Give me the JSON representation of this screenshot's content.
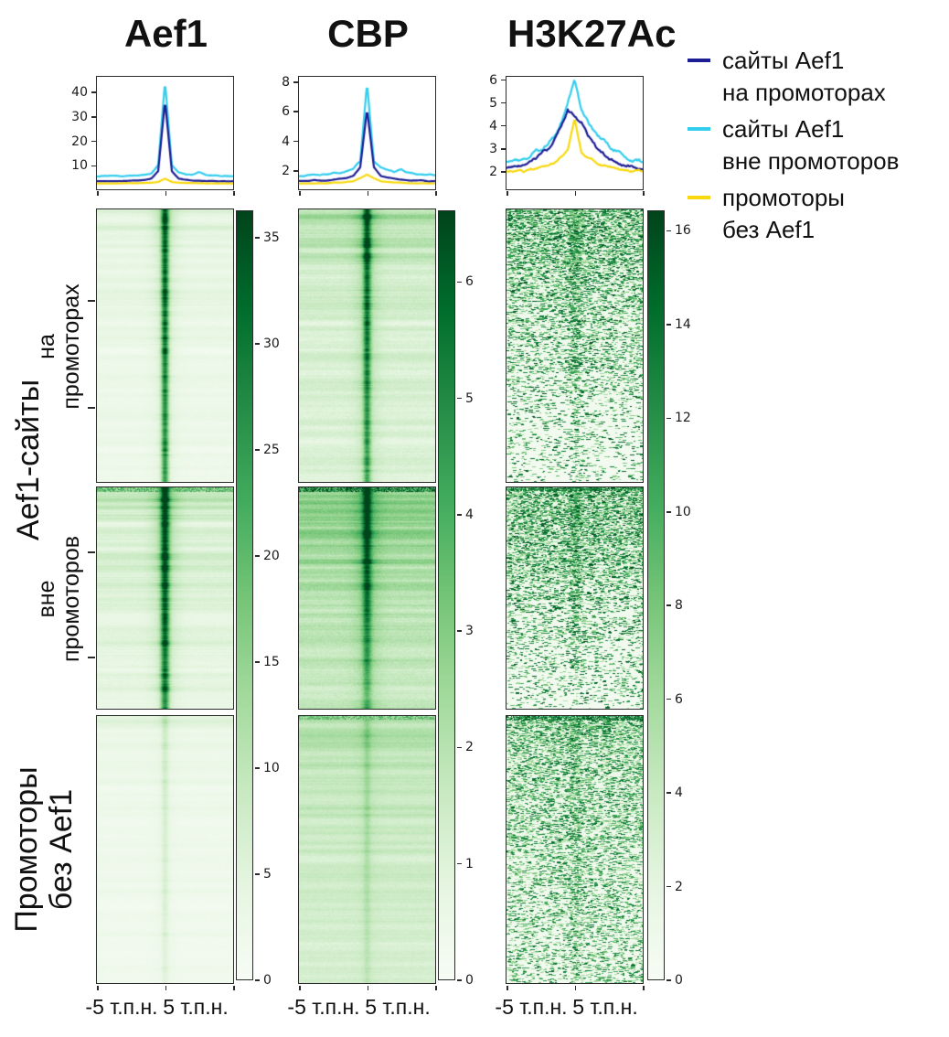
{
  "figure": {
    "xaxis_left": "-5 т.п.н.",
    "xaxis_right": "5 т.п.н.",
    "row_labels": {
      "super": "Aef1-сайты",
      "group1": [
        "на",
        "промоторах"
      ],
      "group2": [
        "вне",
        "промоторов"
      ],
      "group3": [
        "Промоторы",
        "без Aef1"
      ]
    }
  },
  "legend": {
    "items": [
      {
        "label": "сайты Aef1 на промоторах",
        "lines": [
          "сайты Aef1",
          "на промоторах"
        ],
        "color": "#1c1c94"
      },
      {
        "label": "сайты Aef1 вне промоторов",
        "lines": [
          "сайты Aef1",
          "вне промоторов"
        ],
        "color": "#33cdee"
      },
      {
        "label": "промоторы без Aef1",
        "lines": [
          "промоторы",
          "без Aef1"
        ],
        "color": "#f8d80e"
      }
    ]
  },
  "chart_data": {
    "type": "heatmap",
    "description": "deepTools-style ChIP signal figure: mean-profile line plots on top and green (Greens colormap) signal heatmaps below, over a -5..+5 kb window, for three signals (Aef1, CBP, H3K27Ac) across three region groups (Aef1 sites at promoters, Aef1 sites outside promoters, promoters without Aef1).",
    "x_range_kb": [
      -5,
      5
    ],
    "profile_x_kb": [
      -5,
      -4.5,
      -4,
      -3.5,
      -3,
      -2.5,
      -2,
      -1.5,
      -1,
      -0.5,
      0,
      0.5,
      1,
      1.5,
      2,
      2.5,
      3,
      3.5,
      4,
      4.5,
      5
    ],
    "heatmap_colormap": "Greens",
    "columns": [
      {
        "title": "Aef1",
        "profile": {
          "ylim": [
            0,
            46
          ],
          "yticks": [
            10,
            20,
            30,
            40
          ],
          "series": [
            {
              "name": "сайты Aef1 на промоторах",
              "color": "#1c1c94",
              "noise": 0.2,
              "values": [
                3.3,
                3.3,
                3.3,
                3.4,
                3.4,
                3.5,
                3.6,
                3.8,
                4.4,
                7.5,
                36,
                7.5,
                4.4,
                3.9,
                3.6,
                3.5,
                3.4,
                3.4,
                3.3,
                3.3,
                3.3
              ]
            },
            {
              "name": "сайты Aef1 вне промоторов",
              "color": "#33cdee",
              "noise": 0.45,
              "values": [
                5.3,
                5.5,
                5.4,
                5.6,
                5.5,
                5.7,
                5.8,
                6.0,
                6.6,
                10,
                44,
                10,
                6.8,
                6.2,
                6.0,
                7.2,
                5.9,
                5.7,
                5.6,
                5.5,
                5.4
              ]
            },
            {
              "name": "промоторы без Aef1",
              "color": "#f8d80e",
              "noise": 0.1,
              "values": [
                2.4,
                2.4,
                2.4,
                2.4,
                2.5,
                2.5,
                2.5,
                2.6,
                2.7,
                3.0,
                4.4,
                3.0,
                2.7,
                2.6,
                2.5,
                2.5,
                2.4,
                2.4,
                2.4,
                2.4,
                2.4
              ]
            }
          ]
        },
        "colorbar": {
          "vmax": 36.2,
          "ticks": [
            35,
            30,
            25,
            20,
            15,
            10,
            5,
            0
          ]
        },
        "heatmaps": [
          {
            "style": "streak",
            "bg": [
              [
                0,
                3.5
              ],
              [
                0.12,
                2.4
              ],
              [
                0.5,
                1.8
              ],
              [
                1,
                1.5
              ]
            ],
            "streak": [
              [
                0,
                5
              ],
              [
                0.15,
                3
              ],
              [
                0.5,
                2.2
              ],
              [
                1,
                1.6
              ]
            ],
            "stripe": [
              [
                0,
                30
              ],
              [
                0.5,
                29
              ],
              [
                1,
                24
              ]
            ],
            "stripe_sigma": 2.8,
            "halo": [
              [
                0,
                8
              ],
              [
                0.2,
                5
              ],
              [
                1,
                3
              ]
            ],
            "halo_sigma": 9,
            "pn": 1.2
          },
          {
            "style": "streak",
            "bg": [
              [
                0,
                6
              ],
              [
                0.1,
                4
              ],
              [
                0.5,
                3
              ],
              [
                1,
                2
              ]
            ],
            "streak": [
              [
                0,
                8
              ],
              [
                0.3,
                5
              ],
              [
                0.7,
                3.5
              ],
              [
                1,
                2.5
              ]
            ],
            "stripe": [
              [
                0,
                31
              ],
              [
                0.6,
                30
              ],
              [
                1,
                26
              ]
            ],
            "stripe_sigma": 3.2,
            "halo": [
              [
                0,
                10
              ],
              [
                0.5,
                6
              ],
              [
                1,
                4
              ]
            ],
            "halo_sigma": 10,
            "pn": 1.5,
            "top_band": {
              "rows": 5,
              "v": 20
            }
          },
          {
            "style": "streak",
            "bg": [
              [
                0,
                2.2
              ],
              [
                0.15,
                1.6
              ],
              [
                1,
                1.1
              ]
            ],
            "streak": [
              [
                0,
                4
              ],
              [
                0.1,
                1.8
              ],
              [
                1,
                1.2
              ]
            ],
            "stripe": [
              [
                0,
                5
              ],
              [
                1,
                3.5
              ]
            ],
            "stripe_sigma": 2.6,
            "halo": [
              [
                0,
                1.6
              ],
              [
                1,
                1
              ]
            ],
            "halo_sigma": 8,
            "pn": 0.9
          }
        ]
      },
      {
        "title": "CBP",
        "profile": {
          "ylim": [
            0.7,
            8.3
          ],
          "yticks": [
            2,
            4,
            6,
            8
          ],
          "series": [
            {
              "name": "сайты Aef1 на промоторах",
              "color": "#1c1c94",
              "noise": 0.05,
              "values": [
                1.25,
                1.25,
                1.3,
                1.3,
                1.3,
                1.35,
                1.4,
                1.45,
                1.6,
                2.2,
                6.1,
                2.2,
                1.6,
                1.5,
                1.4,
                1.35,
                1.3,
                1.3,
                1.3,
                1.25,
                1.25
              ]
            },
            {
              "name": "сайты Aef1 вне промоторов",
              "color": "#33cdee",
              "noise": 0.12,
              "values": [
                1.6,
                1.65,
                1.7,
                1.65,
                1.7,
                1.75,
                1.8,
                1.9,
                2.1,
                2.6,
                7.8,
                2.6,
                2.2,
                2.0,
                1.9,
                2.1,
                1.8,
                1.75,
                1.7,
                1.65,
                1.6
              ]
            },
            {
              "name": "промоторы без Aef1",
              "color": "#f8d80e",
              "noise": 0.03,
              "values": [
                1.1,
                1.1,
                1.1,
                1.1,
                1.1,
                1.15,
                1.15,
                1.2,
                1.25,
                1.45,
                1.7,
                1.45,
                1.25,
                1.2,
                1.15,
                1.15,
                1.1,
                1.1,
                1.1,
                1.1,
                1.1
              ]
            }
          ]
        },
        "colorbar": {
          "vmax": 6.6,
          "ticks": [
            6,
            5,
            4,
            3,
            2,
            1,
            0
          ]
        },
        "heatmaps": [
          {
            "style": "streak",
            "bg": [
              [
                0,
                1.35
              ],
              [
                0.15,
                1.0
              ],
              [
                1,
                0.75
              ]
            ],
            "streak": [
              [
                0,
                1.2
              ],
              [
                0.2,
                0.8
              ],
              [
                1,
                0.55
              ]
            ],
            "stripe": [
              [
                0,
                4.8
              ],
              [
                0.5,
                4.2
              ],
              [
                1,
                3.2
              ]
            ],
            "stripe_sigma": 2.8,
            "halo": [
              [
                0,
                1.3
              ],
              [
                1,
                0.7
              ]
            ],
            "halo_sigma": 9,
            "pn": 0.4
          },
          {
            "style": "streak",
            "bg": [
              [
                0,
                2.3
              ],
              [
                0.3,
                1.7
              ],
              [
                1,
                1.1
              ]
            ],
            "streak": [
              [
                0,
                1.7
              ],
              [
                0.4,
                1.1
              ],
              [
                1,
                0.7
              ]
            ],
            "stripe": [
              [
                0,
                4.6
              ],
              [
                0.5,
                3.8
              ],
              [
                0.85,
                2.4
              ],
              [
                1,
                1.7
              ]
            ],
            "stripe_sigma": 3.2,
            "halo": [
              [
                0,
                1.5
              ],
              [
                1,
                0.8
              ]
            ],
            "halo_sigma": 10,
            "pn": 0.5,
            "top_band": {
              "rows": 5,
              "v": 5.5
            }
          },
          {
            "style": "streak",
            "bg": [
              [
                0,
                1.55
              ],
              [
                0.2,
                1.3
              ],
              [
                1,
                1.0
              ]
            ],
            "streak": [
              [
                0,
                0.9
              ],
              [
                1,
                0.5
              ]
            ],
            "stripe": [
              [
                0,
                0.9
              ],
              [
                1,
                0.6
              ]
            ],
            "stripe_sigma": 2.6,
            "halo": [
              [
                0,
                0.4
              ],
              [
                1,
                0.2
              ]
            ],
            "halo_sigma": 8,
            "pn": 0.35,
            "top_band": {
              "rows": 4,
              "v": 3.4
            }
          }
        ]
      },
      {
        "title": "H3K27Ac",
        "profile": {
          "ylim": [
            1.2,
            6.1
          ],
          "yticks": [
            2,
            3,
            4,
            5,
            6
          ],
          "series": [
            {
              "name": "сайты Aef1 на промоторах",
              "color": "#1c1c94",
              "noise": 0.2,
              "values": [
                2.1,
                2.2,
                2.25,
                2.35,
                2.5,
                2.7,
                2.9,
                3.3,
                3.9,
                4.7,
                4.35,
                4.1,
                3.6,
                3.1,
                2.8,
                2.55,
                2.4,
                2.3,
                2.2,
                2.15,
                2.1
              ]
            },
            {
              "name": "сайты Aef1 вне промоторов",
              "color": "#33cdee",
              "noise": 0.25,
              "values": [
                2.35,
                2.4,
                2.5,
                2.6,
                2.75,
                2.95,
                3.2,
                3.5,
                4.1,
                4.9,
                5.9,
                4.7,
                4.1,
                3.7,
                3.35,
                3.05,
                2.85,
                2.7,
                2.55,
                2.45,
                2.35
              ]
            },
            {
              "name": "промоторы без Aef1",
              "color": "#f8d80e",
              "noise": 0.15,
              "values": [
                2.0,
                2.0,
                2.05,
                2.05,
                2.1,
                2.15,
                2.2,
                2.35,
                2.6,
                2.85,
                4.3,
                2.85,
                2.6,
                2.4,
                2.25,
                2.2,
                2.1,
                2.05,
                2.05,
                2.0,
                2.0
              ]
            }
          ]
        },
        "colorbar": {
          "vmax": 16.4,
          "ticks": [
            16,
            14,
            12,
            10,
            8,
            6,
            4,
            2,
            0
          ]
        },
        "heatmaps": [
          {
            "style": "speckle",
            "bg": [
              [
                0,
                1.3
              ],
              [
                0.5,
                0.7
              ],
              [
                1,
                0.4
              ]
            ],
            "density": [
              [
                0,
                0.5
              ],
              [
                0.2,
                0.3
              ],
              [
                0.5,
                0.16
              ],
              [
                0.8,
                0.08
              ],
              [
                1,
                0.05
              ]
            ],
            "v_lo": 5,
            "v_hi": 16,
            "stripe_boost": 1.8,
            "stripe_sigma": 4,
            "pn": 0.3
          },
          {
            "style": "speckle",
            "bg": [
              [
                0,
                1.3
              ],
              [
                0.5,
                0.7
              ],
              [
                1,
                0.4
              ]
            ],
            "density": [
              [
                0,
                0.55
              ],
              [
                0.15,
                0.38
              ],
              [
                0.45,
                0.22
              ],
              [
                0.8,
                0.1
              ],
              [
                1,
                0.07
              ]
            ],
            "v_lo": 5,
            "v_hi": 16,
            "stripe_boost": 1.6,
            "stripe_sigma": 4,
            "pn": 0.3,
            "top_band": {
              "rows": 4,
              "v": 13
            }
          },
          {
            "style": "speckle",
            "bg": [
              [
                0,
                1.2
              ],
              [
                0.5,
                0.8
              ],
              [
                1,
                0.6
              ]
            ],
            "density": [
              [
                0,
                0.45
              ],
              [
                0.1,
                0.3
              ],
              [
                0.5,
                0.22
              ],
              [
                1,
                0.16
              ]
            ],
            "v_lo": 4,
            "v_hi": 15,
            "stripe_boost": 1.2,
            "stripe_sigma": 4,
            "pn": 0.3,
            "top_band": {
              "rows": 5,
              "v": 14
            }
          }
        ]
      }
    ],
    "row_groups": [
      "Aef1-сайты на промоторах",
      "Aef1-сайты вне промоторов",
      "Промоторы без Aef1"
    ]
  }
}
